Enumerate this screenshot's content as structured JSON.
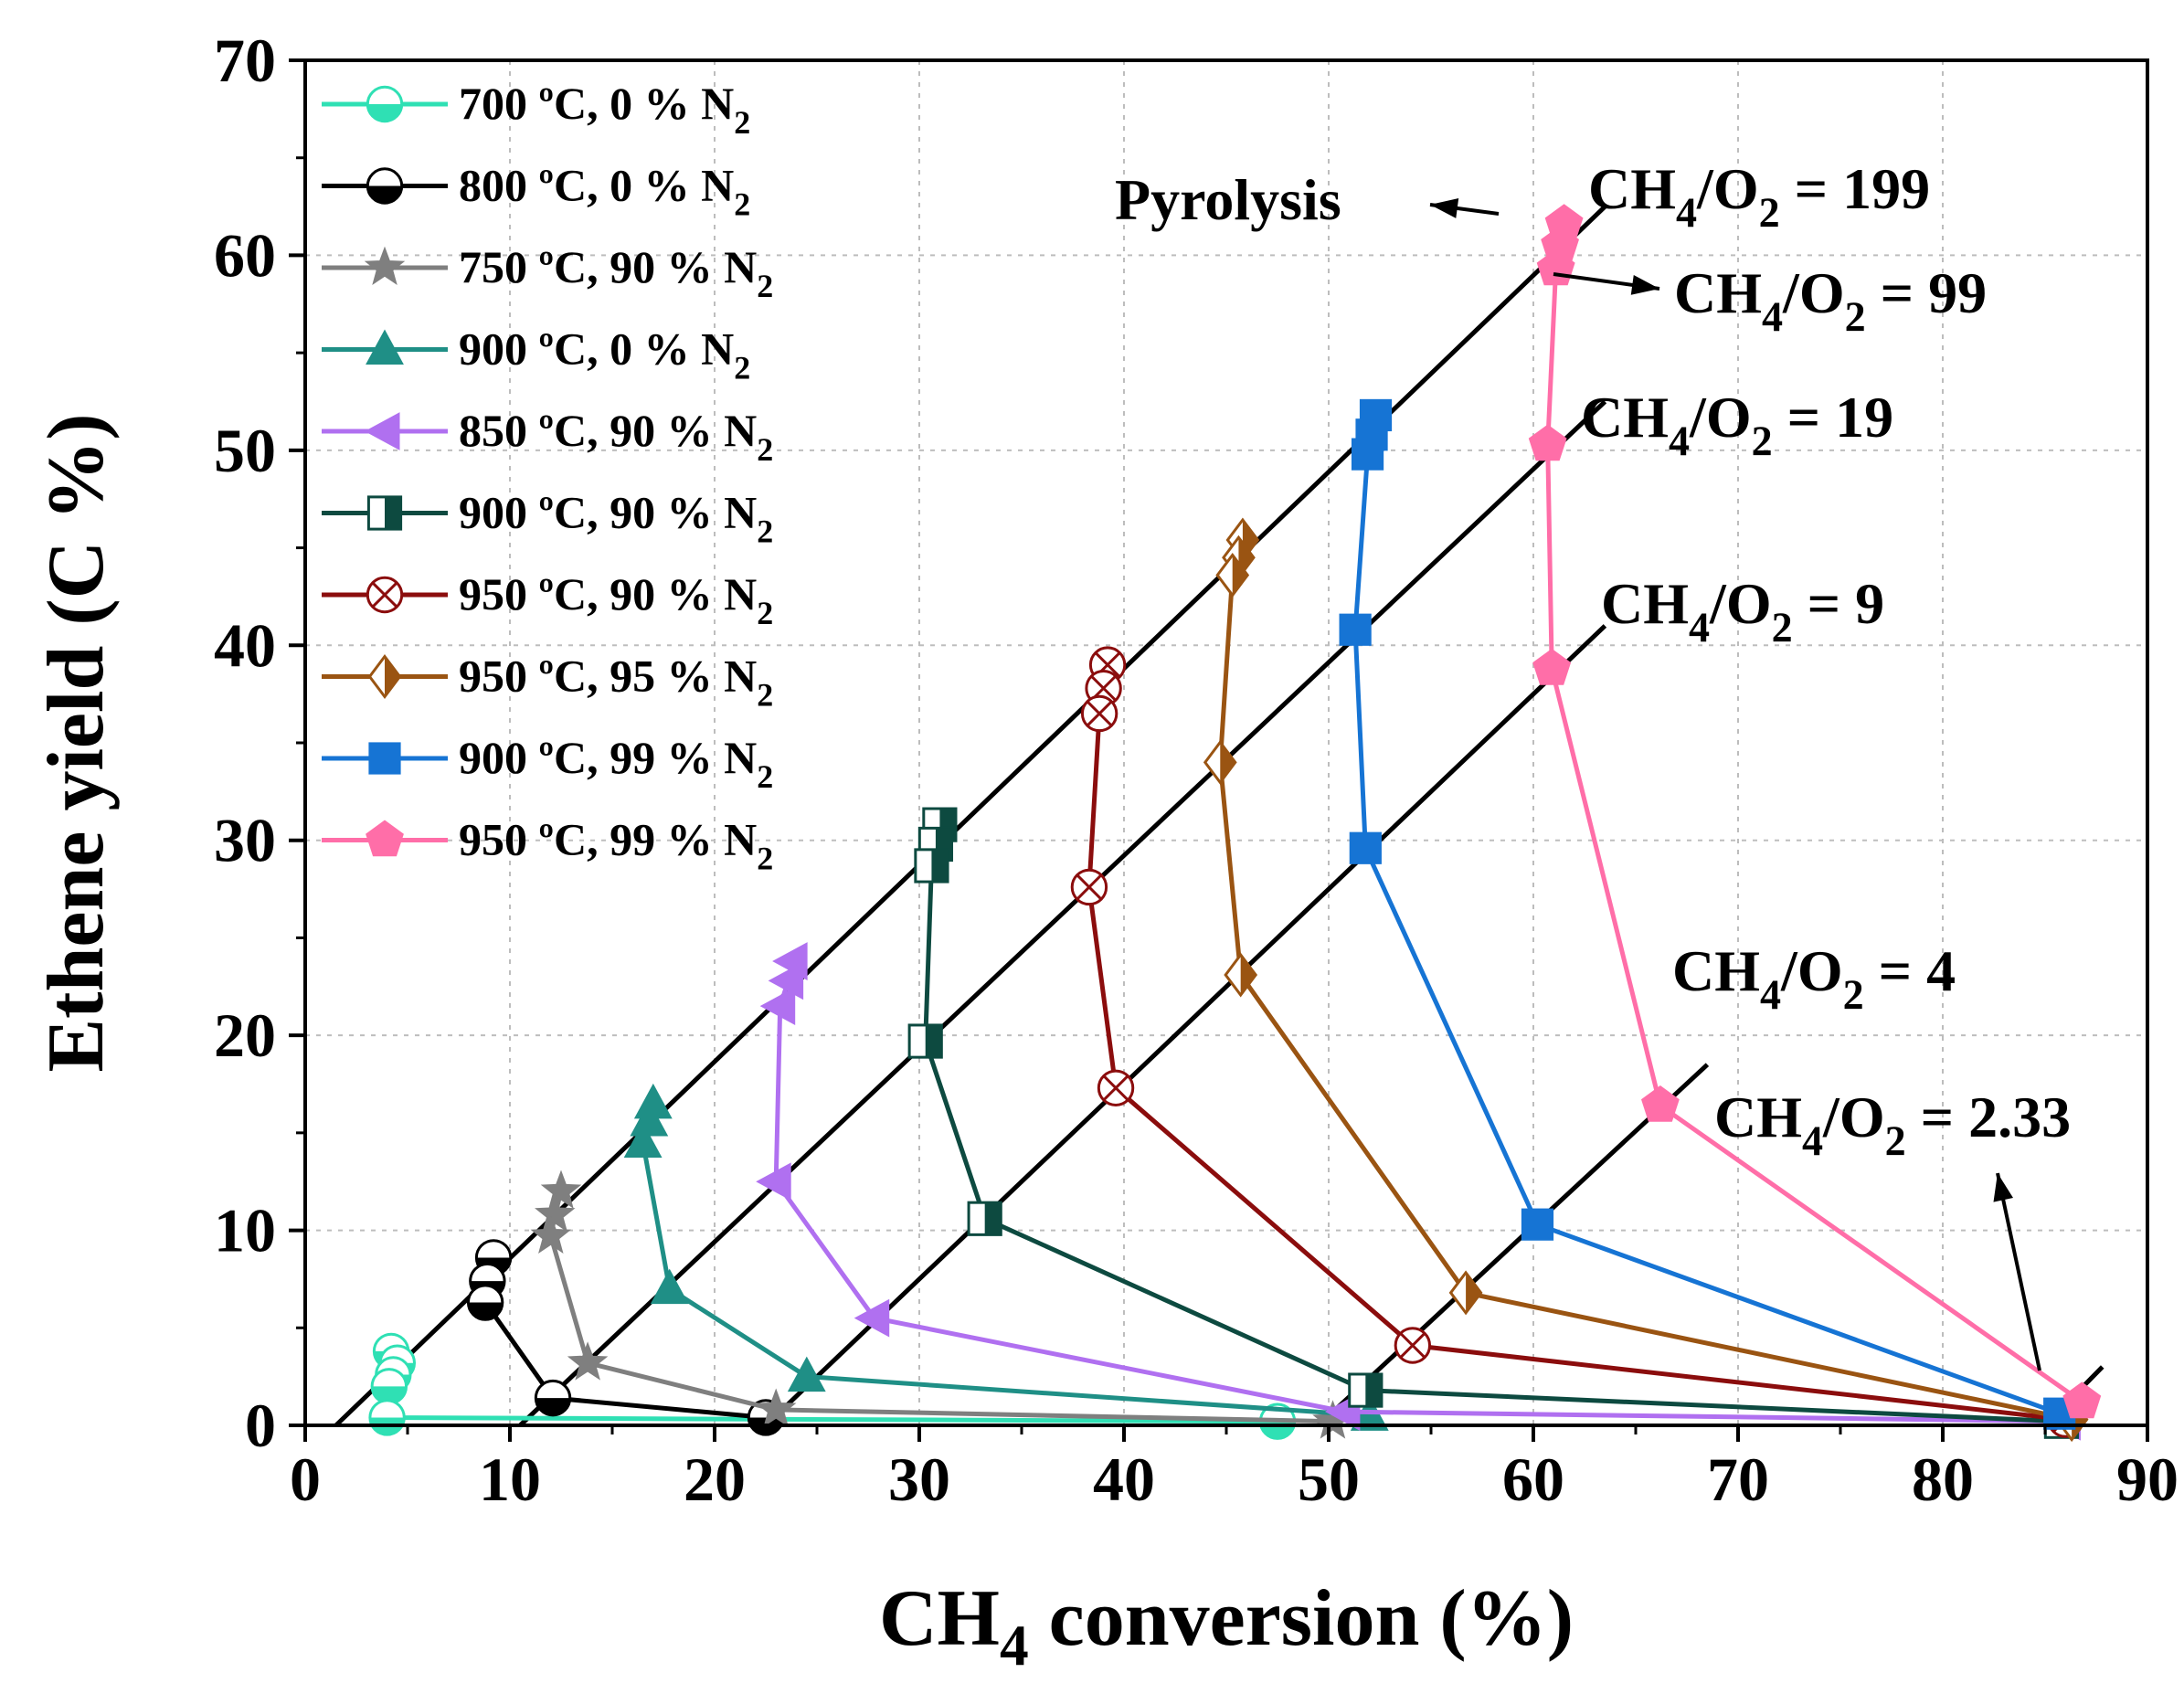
{
  "chart_data": {
    "type": "line",
    "title": "",
    "xlabel": {
      "main": "CH",
      "sub": "4",
      "rest": " conversion (%)"
    },
    "ylabel": "Ethene yield (C %)",
    "xlim": [
      0,
      90
    ],
    "ylim": [
      0,
      70
    ],
    "xticks": [
      0,
      10,
      20,
      30,
      40,
      50,
      60,
      70,
      80,
      90
    ],
    "yticks": [
      0,
      10,
      20,
      30,
      40,
      50,
      60,
      70
    ],
    "grid": true,
    "legend_position": "top-left",
    "series": [
      {
        "name": "700 ºC, 0 % N",
        "sub": "2",
        "color": "#2fe0b4",
        "marker": "circle-half",
        "x": [
          4.2,
          4.5,
          4.3,
          4.1,
          4.0,
          47.5
        ],
        "y": [
          3.8,
          3.2,
          2.6,
          2.0,
          0.4,
          0.2
        ]
      },
      {
        "name": "800 ºC, 0 % N",
        "sub": "2",
        "color": "#000000",
        "marker": "circle-half",
        "x": [
          9.2,
          8.9,
          8.8,
          12.1,
          22.5
        ],
        "y": [
          8.6,
          7.4,
          6.3,
          1.4,
          0.4
        ]
      },
      {
        "name": "750 ºC, 90 % N",
        "sub": "2",
        "color": "#7f7f7f",
        "marker": "star",
        "x": [
          12.5,
          12.2,
          12.0,
          13.8,
          23.0,
          50.2
        ],
        "y": [
          12.0,
          10.8,
          9.7,
          3.2,
          0.8,
          0.2
        ]
      },
      {
        "name": "900 ºC, 0 % N",
        "sub": "2",
        "color": "#1f8f86",
        "marker": "triangle-up",
        "x": [
          17.0,
          16.8,
          16.5,
          17.8,
          24.5,
          52.0
        ],
        "y": [
          16.5,
          15.6,
          14.5,
          7.0,
          2.5,
          0.5
        ]
      },
      {
        "name": "850 ºC, 90 % N",
        "sub": "2",
        "color": "#b070f0",
        "marker": "triangle-left",
        "x": [
          23.8,
          23.6,
          23.2,
          23.0,
          27.8,
          50.8,
          86.0
        ],
        "y": [
          23.8,
          22.8,
          21.5,
          12.5,
          5.5,
          0.7,
          0.2
        ]
      },
      {
        "name": "900 ºC, 90 % N",
        "sub": "2",
        "color": "#0d4a40",
        "marker": "square-half",
        "x": [
          31.0,
          30.8,
          30.6,
          30.3,
          33.2,
          51.8,
          85.8
        ],
        "y": [
          30.8,
          29.8,
          28.7,
          19.7,
          10.6,
          1.8,
          0.2
        ]
      },
      {
        "name": "950 ºC, 90 % N",
        "sub": "2",
        "color": "#8b0d0d",
        "marker": "circle-x",
        "x": [
          39.2,
          39.0,
          38.8,
          38.3,
          39.6,
          54.1,
          86.0
        ],
        "y": [
          39.0,
          37.8,
          36.5,
          27.6,
          17.3,
          4.1,
          0.3
        ]
      },
      {
        "name": "950 ºC, 95 % N",
        "sub": "2",
        "color": "#9a5412",
        "marker": "diamond-half",
        "x": [
          45.8,
          45.6,
          45.3,
          44.7,
          45.7,
          56.7,
          86.3
        ],
        "y": [
          45.4,
          44.5,
          43.6,
          34.0,
          23.1,
          6.8,
          0.3
        ]
      },
      {
        "name": "900 ºC, 99 % N",
        "sub": "2",
        "color": "#1674d4",
        "marker": "square",
        "x": [
          52.3,
          52.1,
          51.9,
          51.3,
          51.8,
          60.2,
          85.7
        ],
        "y": [
          51.8,
          50.8,
          49.8,
          40.8,
          29.6,
          10.3,
          0.6
        ]
      },
      {
        "name": "950 ºC, 99 % N",
        "sub": "2",
        "color": "#ff6ea8",
        "marker": "pentagon",
        "x": [
          61.5,
          61.3,
          61.1,
          60.7,
          60.9,
          66.2,
          86.8
        ],
        "y": [
          61.6,
          60.5,
          59.3,
          50.3,
          38.8,
          16.4,
          1.2
        ]
      }
    ],
    "ratio_lines": [
      {
        "label": "CH",
        "sub1": "4",
        "mid": "/O",
        "sub2": "2",
        "value": " = 199",
        "x": [
          1.5,
          63.5
        ],
        "y": [
          0,
          62.5
        ]
      },
      {
        "label": "CH",
        "sub1": "4",
        "mid": "/O",
        "sub2": "2",
        "value": " = 19",
        "x": [
          10.5,
          63.5
        ],
        "y": [
          0,
          52.5
        ]
      },
      {
        "label": "CH",
        "sub1": "4",
        "mid": "/O",
        "sub2": "2",
        "value": " = 9",
        "x": [
          22.5,
          63.5
        ],
        "y": [
          0,
          41.0
        ]
      },
      {
        "label": "CH",
        "sub1": "4",
        "mid": "/O",
        "sub2": "2",
        "value": " = 4",
        "x": [
          49.5,
          68.5
        ],
        "y": [
          0,
          18.5
        ]
      },
      {
        "label": "CH",
        "sub1": "4",
        "mid": "/O",
        "sub2": "2",
        "value": " = 2.33",
        "x": [
          85.0,
          87.8
        ],
        "y": [
          0,
          3.0
        ]
      }
    ],
    "annotations": {
      "pyrolysis": "Pyrolysis",
      "ratio_99": {
        "label": "CH",
        "sub1": "4",
        "mid": "/O",
        "sub2": "2",
        "value": " = 99"
      }
    }
  }
}
